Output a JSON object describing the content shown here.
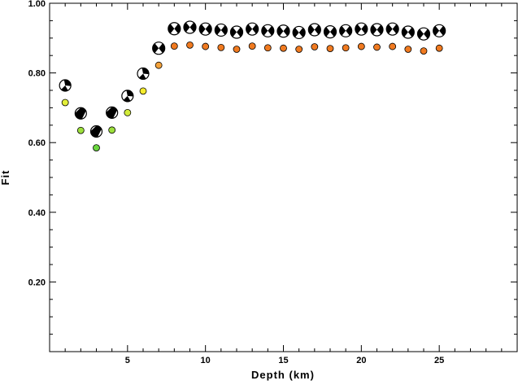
{
  "chart_data": {
    "type": "scatter",
    "title": "",
    "xlabel": "Depth (km)",
    "ylabel": "Fit",
    "xlim": [
      0,
      30
    ],
    "ylim": [
      0,
      1.0
    ],
    "grid": false,
    "legend": "none",
    "x_ticks": [
      5,
      10,
      15,
      20,
      25
    ],
    "x_tick_labels": [
      "5",
      "10",
      "15",
      "20",
      "25"
    ],
    "y_ticks": [
      0.2,
      0.4,
      0.6,
      0.8,
      1.0
    ],
    "y_tick_labels": [
      "0.20",
      "0.40",
      "0.60",
      "0.80",
      "1.00"
    ],
    "series": [
      {
        "marker": "focal-mechanism",
        "points": [
          {
            "x": 1,
            "y": 0.764
          },
          {
            "x": 2,
            "y": 0.684
          },
          {
            "x": 3,
            "y": 0.632
          },
          {
            "x": 4,
            "y": 0.686
          },
          {
            "x": 5,
            "y": 0.734
          },
          {
            "x": 6,
            "y": 0.798
          },
          {
            "x": 7,
            "y": 0.871
          },
          {
            "x": 8,
            "y": 0.927
          },
          {
            "x": 9,
            "y": 0.931
          },
          {
            "x": 10,
            "y": 0.926
          },
          {
            "x": 11,
            "y": 0.923
          },
          {
            "x": 12,
            "y": 0.917
          },
          {
            "x": 13,
            "y": 0.926
          },
          {
            "x": 14,
            "y": 0.921
          },
          {
            "x": 15,
            "y": 0.92
          },
          {
            "x": 16,
            "y": 0.916
          },
          {
            "x": 17,
            "y": 0.924
          },
          {
            "x": 18,
            "y": 0.918
          },
          {
            "x": 19,
            "y": 0.921
          },
          {
            "x": 20,
            "y": 0.926
          },
          {
            "x": 21,
            "y": 0.924
          },
          {
            "x": 22,
            "y": 0.926
          },
          {
            "x": 23,
            "y": 0.917
          },
          {
            "x": 24,
            "y": 0.912
          },
          {
            "x": 25,
            "y": 0.921
          }
        ]
      },
      {
        "marker": "circle",
        "points": [
          {
            "x": 1,
            "y": 0.715,
            "color": "#e3ef3a"
          },
          {
            "x": 2,
            "y": 0.635,
            "color": "#9de03c"
          },
          {
            "x": 3,
            "y": 0.585,
            "color": "#6ad63f"
          },
          {
            "x": 4,
            "y": 0.636,
            "color": "#9de03c"
          },
          {
            "x": 5,
            "y": 0.686,
            "color": "#d2ec3a"
          },
          {
            "x": 6,
            "y": 0.748,
            "color": "#f5ec2e"
          },
          {
            "x": 7,
            "y": 0.822,
            "color": "#f4a23a"
          },
          {
            "x": 8,
            "y": 0.877,
            "color": "#f07a20"
          },
          {
            "x": 9,
            "y": 0.88,
            "color": "#f07a20"
          },
          {
            "x": 10,
            "y": 0.876,
            "color": "#f07a20"
          },
          {
            "x": 11,
            "y": 0.873,
            "color": "#f07a20"
          },
          {
            "x": 12,
            "y": 0.868,
            "color": "#f07a20"
          },
          {
            "x": 13,
            "y": 0.877,
            "color": "#f07a20"
          },
          {
            "x": 14,
            "y": 0.872,
            "color": "#f07a20"
          },
          {
            "x": 15,
            "y": 0.871,
            "color": "#f07a20"
          },
          {
            "x": 16,
            "y": 0.868,
            "color": "#f07a20"
          },
          {
            "x": 17,
            "y": 0.875,
            "color": "#f07a20"
          },
          {
            "x": 18,
            "y": 0.87,
            "color": "#f07a20"
          },
          {
            "x": 19,
            "y": 0.872,
            "color": "#f07a20"
          },
          {
            "x": 20,
            "y": 0.876,
            "color": "#f07a20"
          },
          {
            "x": 21,
            "y": 0.874,
            "color": "#f07a20"
          },
          {
            "x": 22,
            "y": 0.876,
            "color": "#f07a20"
          },
          {
            "x": 23,
            "y": 0.868,
            "color": "#f07a20"
          },
          {
            "x": 24,
            "y": 0.863,
            "color": "#f07a20"
          },
          {
            "x": 25,
            "y": 0.871,
            "color": "#f07a20"
          }
        ]
      }
    ]
  }
}
